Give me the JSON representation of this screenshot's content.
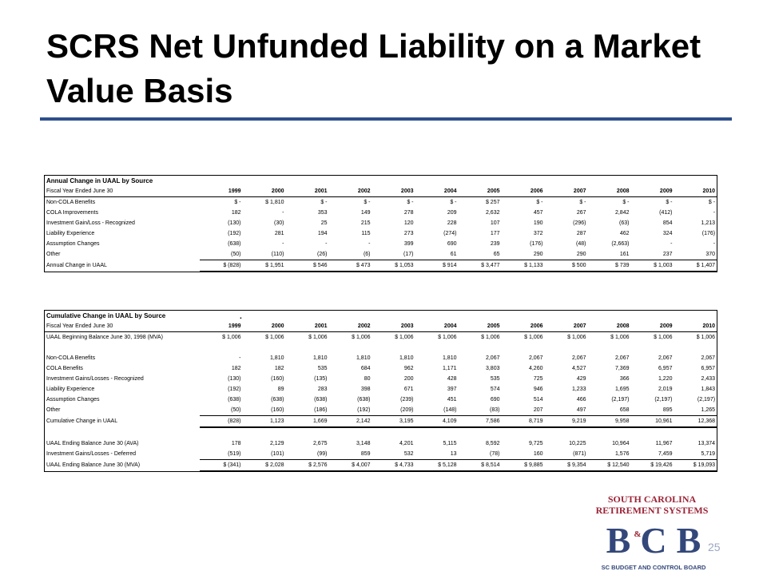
{
  "slide": {
    "title": "SCRS Net Unfunded Liability on a Market Value Basis",
    "page_number": "25",
    "rule_color": "#2e4f8c"
  },
  "annual": {
    "title": "Annual Change in UAAL by Source",
    "header_label": "Fiscal Year Ended June 30",
    "years": [
      "1999",
      "2000",
      "2001",
      "2002",
      "2003",
      "2004",
      "2005",
      "2006",
      "2007",
      "2008",
      "2009",
      "2010"
    ],
    "rows": [
      {
        "label": "Non-COLA Benefits",
        "values": [
          "$ -",
          "$ 1,810",
          "$ -",
          "$ -",
          "$ -",
          "$ -",
          "$ 257",
          "$ -",
          "$ -",
          "$ -",
          "$ -",
          "$ -"
        ]
      },
      {
        "label": "COLA Improvements",
        "values": [
          "182",
          "-",
          "353",
          "149",
          "278",
          "209",
          "2,632",
          "457",
          "267",
          "2,842",
          "(412)",
          "-"
        ]
      },
      {
        "label": "Investment Gain/Loss - Recognized",
        "values": [
          "(130)",
          "(30)",
          "25",
          "215",
          "120",
          "228",
          "107",
          "190",
          "(296)",
          "(63)",
          "854",
          "1,213"
        ]
      },
      {
        "label": "Liability Experience",
        "values": [
          "(192)",
          "281",
          "194",
          "115",
          "273",
          "(274)",
          "177",
          "372",
          "287",
          "462",
          "324",
          "(176)"
        ]
      },
      {
        "label": "Assumption Changes",
        "values": [
          "(638)",
          "-",
          "-",
          "-",
          "399",
          "690",
          "239",
          "(176)",
          "(48)",
          "(2,663)",
          "-",
          "-"
        ]
      },
      {
        "label": "Other",
        "values": [
          "(50)",
          "(110)",
          "(26)",
          "(6)",
          "(17)",
          "61",
          "65",
          "290",
          "290",
          "161",
          "237",
          "370"
        ]
      }
    ],
    "total": {
      "label": "Annual Change in UAAL",
      "values": [
        "$ (828)",
        "$ 1,951",
        "$ 546",
        "$ 473",
        "$ 1,053",
        "$ 914",
        "$ 3,477",
        "$ 1,133",
        "$ 500",
        "$ 739",
        "$ 1,003",
        "$ 1,407"
      ]
    }
  },
  "cumulative": {
    "title": "Cumulative Change in UAAL by Source",
    "header_mark": ".",
    "header_label": "Fiscal Year Ended June 30",
    "years": [
      "1999",
      "2000",
      "2001",
      "2002",
      "2003",
      "2004",
      "2005",
      "2006",
      "2007",
      "2008",
      "2009",
      "2010"
    ],
    "beginning": {
      "label": "UAAL Beginning Balance June 30, 1998 (MVA)",
      "values": [
        "$ 1,006",
        "$ 1,006",
        "$ 1,006",
        "$ 1,006",
        "$ 1,006",
        "$ 1,006",
        "$ 1,006",
        "$ 1,006",
        "$ 1,006",
        "$ 1,006",
        "$ 1,006",
        "$ 1,006"
      ]
    },
    "rows": [
      {
        "label": "Non-COLA Benefits",
        "values": [
          "-",
          "1,810",
          "1,810",
          "1,810",
          "1,810",
          "1,810",
          "2,067",
          "2,067",
          "2,067",
          "2,067",
          "2,067",
          "2,067"
        ]
      },
      {
        "label": "COLA Benefits",
        "values": [
          "182",
          "182",
          "535",
          "684",
          "962",
          "1,171",
          "3,803",
          "4,260",
          "4,527",
          "7,369",
          "6,957",
          "6,957"
        ]
      },
      {
        "label": "Investment Gains/Losses - Recognized",
        "values": [
          "(130)",
          "(160)",
          "(135)",
          "80",
          "200",
          "428",
          "535",
          "725",
          "429",
          "366",
          "1,220",
          "2,433"
        ]
      },
      {
        "label": "Liability Experience",
        "values": [
          "(192)",
          "89",
          "283",
          "398",
          "671",
          "397",
          "574",
          "946",
          "1,233",
          "1,695",
          "2,019",
          "1,843"
        ]
      },
      {
        "label": "Assumption Changes",
        "values": [
          "(638)",
          "(638)",
          "(638)",
          "(638)",
          "(239)",
          "451",
          "690",
          "514",
          "466",
          "(2,197)",
          "(2,197)",
          "(2,197)"
        ]
      },
      {
        "label": "Other",
        "values": [
          "(50)",
          "(160)",
          "(186)",
          "(192)",
          "(209)",
          "(148)",
          "(83)",
          "207",
          "497",
          "658",
          "895",
          "1,265"
        ]
      }
    ],
    "total": {
      "label": "Cumulative Change in UAAL",
      "values": [
        "(828)",
        "1,123",
        "1,669",
        "2,142",
        "3,195",
        "4,109",
        "7,586",
        "8,719",
        "9,219",
        "9,958",
        "10,961",
        "12,368"
      ]
    },
    "ending_rows": [
      {
        "label": "UAAL Ending Balance June 30 (AVA)",
        "values": [
          "178",
          "2,129",
          "2,675",
          "3,148",
          "4,201",
          "5,115",
          "8,592",
          "9,725",
          "10,225",
          "10,964",
          "11,967",
          "13,374"
        ]
      },
      {
        "label": "Investment Gains/Losses - Deferred",
        "values": [
          "(519)",
          "(101)",
          "(99)",
          "859",
          "532",
          "13",
          "(78)",
          "160",
          "(871)",
          "1,576",
          "7,459",
          "5,719"
        ]
      },
      {
        "label": "UAAL Ending Balance June 30 (MVA)",
        "values": [
          "$ (341)",
          "$ 2,028",
          "$ 2,576",
          "$ 4,007",
          "$ 4,733",
          "$ 5,128",
          "$ 8,514",
          "$ 9,885",
          "$ 9,354",
          "$ 12,540",
          "$ 19,426",
          "$ 19,093"
        ]
      }
    ]
  },
  "logo": {
    "line1": "SOUTH CAROLINA",
    "line2": "RETIREMENT SYSTEMS",
    "monogram_left": "B",
    "monogram_mid": "C",
    "monogram_right": "B",
    "ampersand": "&",
    "subtitle": "SC BUDGET AND CONTROL BOARD",
    "red": "#9b2335",
    "blue": "#33477a"
  }
}
